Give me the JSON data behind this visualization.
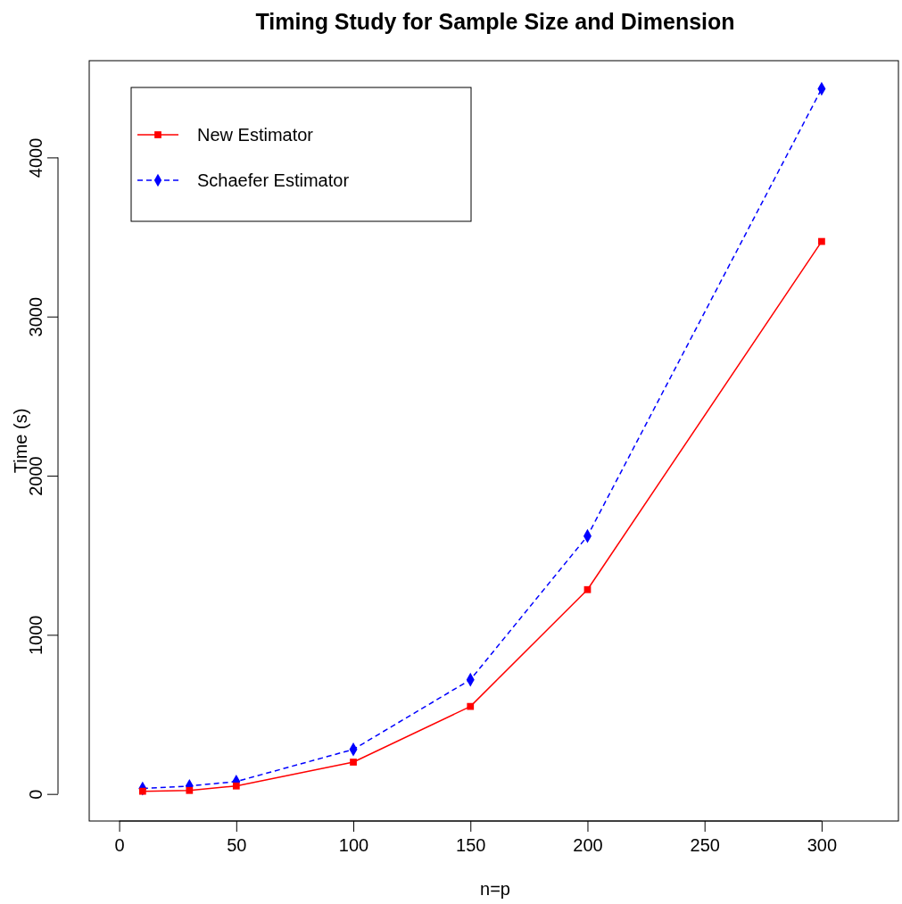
{
  "chart_data": {
    "type": "line",
    "title": "Timing Study for Sample Size and Dimension",
    "xlabel": "n=p",
    "ylabel": "Time (s)",
    "x": [
      10,
      30,
      50,
      100,
      150,
      200,
      300
    ],
    "series": [
      {
        "name": "New Estimator",
        "color": "#ff0000",
        "values": [
          17,
          22,
          50,
          200,
          550,
          1284,
          3472
        ],
        "marker": "square",
        "line_style": "solid"
      },
      {
        "name": "Schaefer Estimator",
        "color": "#0000ff",
        "values": [
          34,
          50,
          78,
          280,
          718,
          1621,
          4431
        ],
        "marker": "diamond",
        "line_style": "dashed"
      }
    ],
    "xlim": [
      -12.8,
      332.8
    ],
    "xticks": [
      0,
      50,
      100,
      150,
      200,
      250,
      300
    ],
    "ylim": [
      -170,
      4608
    ],
    "yticks": [
      0,
      1000,
      2000,
      3000,
      4000
    ],
    "legend": "top left",
    "grid": false
  }
}
